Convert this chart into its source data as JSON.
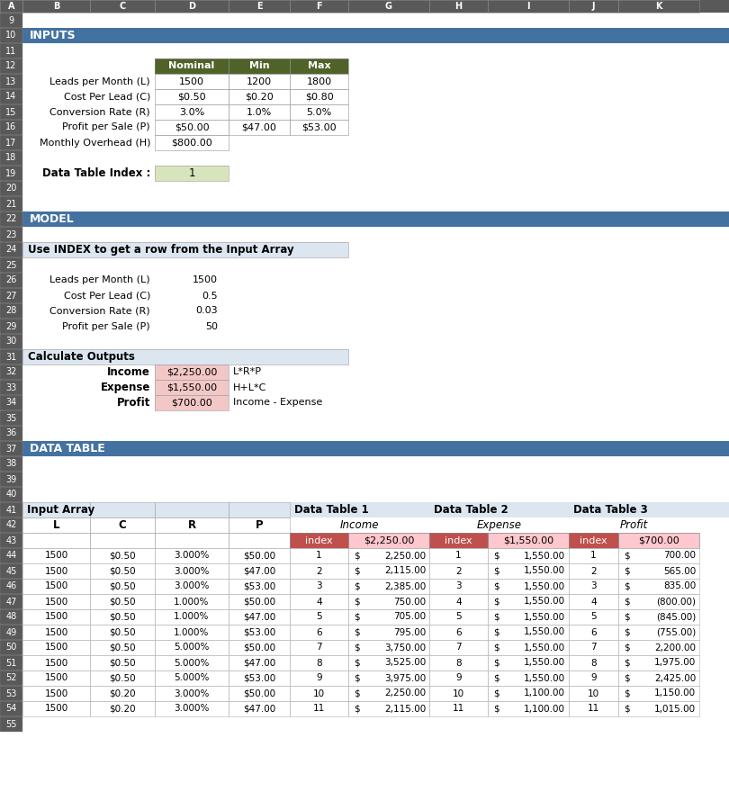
{
  "section_bg": "#4472a0",
  "bg_color": "#ffffff",
  "row_num_bg": "#595959",
  "row_num_text": "#ffffff",
  "col_header_bg": "#595959",
  "col_header_text": "#ffffff",
  "light_blue_bg": "#dce6f1",
  "olive_header_bg": "#4f6228",
  "olive_header_text": "#ffffff",
  "green_cell_bg": "#d8e4bc",
  "calc_color": "#f2c7c5",
  "red_header_bg": "#c0504d",
  "dt_row_bg": "#eaf1dd",
  "dt_index_bg": "#dce6f1",
  "inputs_rows": [
    [
      "Leads per Month (L)",
      "1500",
      "1200",
      "1800"
    ],
    [
      "Cost Per Lead (C)",
      "$0.50",
      "$0.20",
      "$0.80"
    ],
    [
      "Conversion Rate (R)",
      "3.0%",
      "1.0%",
      "5.0%"
    ],
    [
      "Profit per Sale (P)",
      "$50.00",
      "$47.00",
      "$53.00"
    ],
    [
      "Monthly Overhead (H)",
      "$800.00",
      "",
      ""
    ]
  ],
  "model_vars": [
    [
      "Leads per Month (L)",
      "1500"
    ],
    [
      "Cost Per Lead (C)",
      "0.5"
    ],
    [
      "Conversion Rate (R)",
      "0.03"
    ],
    [
      "Profit per Sale (P)",
      "50"
    ]
  ],
  "calc_rows": [
    [
      "Income",
      "$2,250.00",
      "L*R*P"
    ],
    [
      "Expense",
      "$1,550.00",
      "H+L*C"
    ],
    [
      "Profit",
      "$700.00",
      "Income - Expense"
    ]
  ],
  "dt_data": [
    [
      "1500",
      "$0.50",
      "3.000%",
      "$50.00",
      "1",
      "2,250.00",
      "1",
      "1,550.00",
      "1",
      "700.00"
    ],
    [
      "1500",
      "$0.50",
      "3.000%",
      "$47.00",
      "2",
      "2,115.00",
      "2",
      "1,550.00",
      "2",
      "565.00"
    ],
    [
      "1500",
      "$0.50",
      "3.000%",
      "$53.00",
      "3",
      "2,385.00",
      "3",
      "1,550.00",
      "3",
      "835.00"
    ],
    [
      "1500",
      "$0.50",
      "1.000%",
      "$50.00",
      "4",
      "750.00",
      "4",
      "1,550.00",
      "4",
      "(800.00)"
    ],
    [
      "1500",
      "$0.50",
      "1.000%",
      "$47.00",
      "5",
      "705.00",
      "5",
      "1,550.00",
      "5",
      "(845.00)"
    ],
    [
      "1500",
      "$0.50",
      "1.000%",
      "$53.00",
      "6",
      "795.00",
      "6",
      "1,550.00",
      "6",
      "(755.00)"
    ],
    [
      "1500",
      "$0.50",
      "5.000%",
      "$50.00",
      "7",
      "3,750.00",
      "7",
      "1,550.00",
      "7",
      "2,200.00"
    ],
    [
      "1500",
      "$0.50",
      "5.000%",
      "$47.00",
      "8",
      "3,525.00",
      "8",
      "1,550.00",
      "8",
      "1,975.00"
    ],
    [
      "1500",
      "$0.50",
      "5.000%",
      "$53.00",
      "9",
      "3,975.00",
      "9",
      "1,550.00",
      "9",
      "2,425.00"
    ],
    [
      "1500",
      "$0.20",
      "3.000%",
      "$50.00",
      "10",
      "2,250.00",
      "10",
      "1,100.00",
      "10",
      "1,150.00"
    ],
    [
      "1500",
      "$0.20",
      "3.000%",
      "$47.00",
      "11",
      "2,115.00",
      "11",
      "1,100.00",
      "11",
      "1,015.00"
    ]
  ]
}
